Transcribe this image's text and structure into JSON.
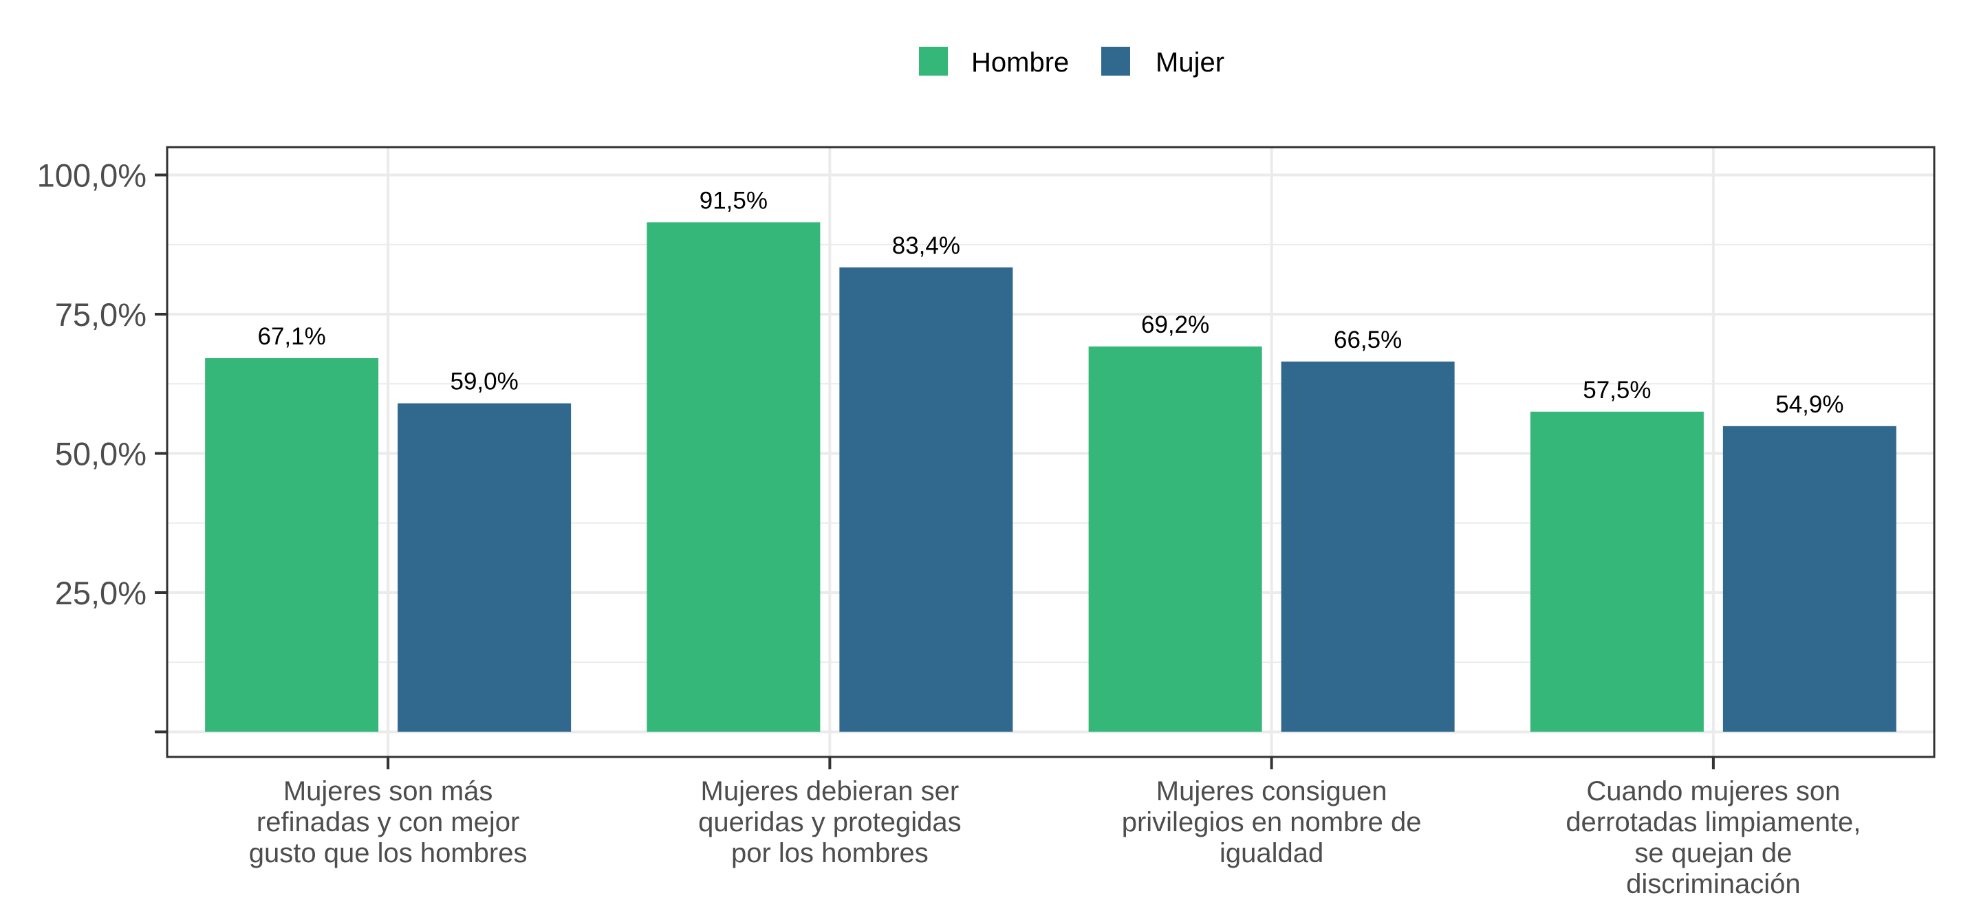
{
  "chart_data": {
    "type": "bar",
    "categories": [
      [
        "Mujeres son más",
        "refinadas y con mejor",
        "gusto que los hombres"
      ],
      [
        "Mujeres debieran ser",
        "queridas y protegidas",
        "por los hombres"
      ],
      [
        "Mujeres consiguen",
        "privilegios en nombre de",
        "igualdad"
      ],
      [
        "Cuando mujeres son",
        "derrotadas limpiamente,",
        "se quejan de",
        "discriminación"
      ]
    ],
    "series": [
      {
        "name": "Hombre",
        "color": "#35b779",
        "values": [
          67.1,
          91.5,
          69.2,
          57.5
        ],
        "labels": [
          "67,1%",
          "91,5%",
          "69,2%",
          "57,5%"
        ]
      },
      {
        "name": "Mujer",
        "color": "#31688e",
        "values": [
          59.0,
          83.4,
          66.5,
          54.9
        ],
        "labels": [
          "59,0%",
          "83,4%",
          "66,5%",
          "54,9%"
        ]
      }
    ],
    "ylim": [
      -4.5,
      105
    ],
    "yticks": [
      {
        "value": 0,
        "label": ""
      },
      {
        "value": 25,
        "label": "25,0%"
      },
      {
        "value": 50,
        "label": "50,0%"
      },
      {
        "value": 75,
        "label": "75,0%"
      },
      {
        "value": 100,
        "label": "100,0%"
      }
    ],
    "minor_gridlines": [
      12.5,
      37.5,
      62.5,
      87.5
    ],
    "grid": true,
    "legend_position": "top",
    "title": "",
    "xlabel": "",
    "ylabel": ""
  }
}
